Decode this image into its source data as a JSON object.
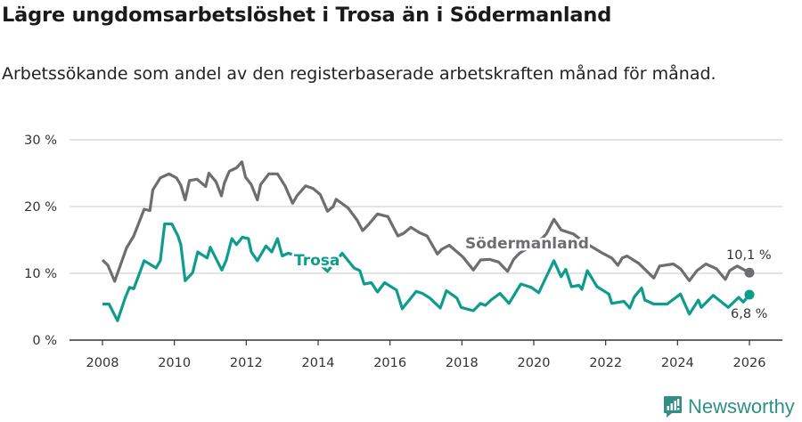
{
  "header": {
    "title": "Lägre ungdomsarbetslöshet i Trosa än i Södermanland",
    "subtitle": "Arbetssökande som andel av den registerbaserade arbetskraften månad för månad."
  },
  "brand": {
    "name": "Newsworthy",
    "color": "#2f8f87"
  },
  "chart_data": {
    "type": "line",
    "title": "Lägre ungdomsarbetslöshet i Trosa än i Södermanland",
    "xlabel": "",
    "ylabel": "",
    "xlim": [
      2008,
      2026
    ],
    "ylim": [
      0,
      30
    ],
    "x_ticks": [
      2008,
      2010,
      2012,
      2014,
      2016,
      2018,
      2020,
      2022,
      2024,
      2026
    ],
    "x_tick_labels": [
      "2008",
      "2010",
      "2012",
      "2014",
      "2016",
      "2018",
      "2020",
      "2022",
      "2024",
      "2026"
    ],
    "y_ticks": [
      0,
      10,
      20,
      30
    ],
    "y_tick_labels": [
      "0 %",
      "10 %",
      "20 %",
      "30 %"
    ],
    "grid": true,
    "series": [
      {
        "name": "Södermanland",
        "color": "#6e6d72",
        "end_label": "10,1 %",
        "points": [
          [
            2008.0,
            12.0
          ],
          [
            2008.15,
            11.2
          ],
          [
            2008.34,
            8.8
          ],
          [
            2008.67,
            13.8
          ],
          [
            2008.87,
            15.6
          ],
          [
            2009.16,
            19.6
          ],
          [
            2009.32,
            19.4
          ],
          [
            2009.4,
            22.5
          ],
          [
            2009.61,
            24.3
          ],
          [
            2009.85,
            24.9
          ],
          [
            2010.06,
            24.3
          ],
          [
            2010.18,
            23.2
          ],
          [
            2010.3,
            21.0
          ],
          [
            2010.42,
            23.9
          ],
          [
            2010.63,
            24.1
          ],
          [
            2010.87,
            23.0
          ],
          [
            2010.96,
            25.0
          ],
          [
            2011.16,
            23.7
          ],
          [
            2011.31,
            21.6
          ],
          [
            2011.39,
            23.5
          ],
          [
            2011.53,
            25.3
          ],
          [
            2011.73,
            25.8
          ],
          [
            2011.88,
            26.7
          ],
          [
            2011.98,
            24.4
          ],
          [
            2012.14,
            23.3
          ],
          [
            2012.31,
            21.0
          ],
          [
            2012.4,
            23.3
          ],
          [
            2012.63,
            24.9
          ],
          [
            2012.87,
            24.9
          ],
          [
            2013.08,
            23.1
          ],
          [
            2013.29,
            20.5
          ],
          [
            2013.41,
            21.6
          ],
          [
            2013.65,
            23.1
          ],
          [
            2013.86,
            22.7
          ],
          [
            2014.06,
            21.8
          ],
          [
            2014.26,
            19.3
          ],
          [
            2014.42,
            20.0
          ],
          [
            2014.5,
            21.1
          ],
          [
            2014.83,
            19.8
          ],
          [
            2015.08,
            18.0
          ],
          [
            2015.24,
            16.4
          ],
          [
            2015.4,
            17.3
          ],
          [
            2015.65,
            18.9
          ],
          [
            2015.94,
            18.5
          ],
          [
            2016.22,
            15.6
          ],
          [
            2016.38,
            16.0
          ],
          [
            2016.58,
            16.9
          ],
          [
            2016.82,
            16.1
          ],
          [
            2017.03,
            15.6
          ],
          [
            2017.32,
            12.9
          ],
          [
            2017.44,
            13.6
          ],
          [
            2017.65,
            14.2
          ],
          [
            2018.02,
            12.5
          ],
          [
            2018.32,
            10.5
          ],
          [
            2018.52,
            12.0
          ],
          [
            2018.77,
            12.1
          ],
          [
            2019.02,
            11.7
          ],
          [
            2019.27,
            10.3
          ],
          [
            2019.44,
            12.1
          ],
          [
            2019.6,
            13.0
          ],
          [
            2019.9,
            14.0
          ],
          [
            2020.15,
            14.8
          ],
          [
            2020.35,
            15.9
          ],
          [
            2020.56,
            18.1
          ],
          [
            2020.76,
            16.5
          ],
          [
            2021.1,
            15.9
          ],
          [
            2021.45,
            14.5
          ],
          [
            2021.92,
            13.0
          ],
          [
            2022.17,
            12.3
          ],
          [
            2022.34,
            11.2
          ],
          [
            2022.46,
            12.3
          ],
          [
            2022.59,
            12.6
          ],
          [
            2022.92,
            11.5
          ],
          [
            2023.34,
            9.3
          ],
          [
            2023.5,
            11.1
          ],
          [
            2023.88,
            11.4
          ],
          [
            2024.08,
            10.7
          ],
          [
            2024.33,
            8.9
          ],
          [
            2024.54,
            10.4
          ],
          [
            2024.79,
            11.4
          ],
          [
            2025.08,
            10.7
          ],
          [
            2025.33,
            9.1
          ],
          [
            2025.45,
            10.4
          ],
          [
            2025.66,
            11.1
          ],
          [
            2026.0,
            10.1
          ]
        ]
      },
      {
        "name": "Trosa",
        "color": "#0e9c8d",
        "end_label": "6,8 %",
        "points": [
          [
            2008.0,
            5.4
          ],
          [
            2008.18,
            5.4
          ],
          [
            2008.42,
            2.9
          ],
          [
            2008.63,
            6.3
          ],
          [
            2008.75,
            7.9
          ],
          [
            2008.87,
            7.7
          ],
          [
            2009.16,
            11.9
          ],
          [
            2009.49,
            10.8
          ],
          [
            2009.61,
            11.9
          ],
          [
            2009.73,
            17.4
          ],
          [
            2009.93,
            17.4
          ],
          [
            2010.1,
            15.6
          ],
          [
            2010.18,
            14.3
          ],
          [
            2010.3,
            8.9
          ],
          [
            2010.51,
            10.1
          ],
          [
            2010.65,
            13.2
          ],
          [
            2010.91,
            12.3
          ],
          [
            2011.0,
            13.9
          ],
          [
            2011.32,
            10.5
          ],
          [
            2011.44,
            11.9
          ],
          [
            2011.6,
            15.2
          ],
          [
            2011.73,
            14.3
          ],
          [
            2011.89,
            15.4
          ],
          [
            2012.06,
            15.2
          ],
          [
            2012.14,
            13.2
          ],
          [
            2012.31,
            11.9
          ],
          [
            2012.55,
            14.1
          ],
          [
            2012.71,
            13.2
          ],
          [
            2012.87,
            15.2
          ],
          [
            2013.0,
            12.6
          ],
          [
            2013.16,
            13.0
          ],
          [
            2013.5,
            12.6
          ],
          [
            2013.9,
            12.2
          ],
          [
            2014.26,
            10.3
          ],
          [
            2014.67,
            13.0
          ],
          [
            2015.0,
            10.8
          ],
          [
            2015.16,
            10.4
          ],
          [
            2015.28,
            8.4
          ],
          [
            2015.48,
            8.6
          ],
          [
            2015.65,
            7.2
          ],
          [
            2015.85,
            8.6
          ],
          [
            2016.18,
            7.5
          ],
          [
            2016.34,
            4.7
          ],
          [
            2016.73,
            7.3
          ],
          [
            2016.9,
            7.0
          ],
          [
            2017.11,
            6.3
          ],
          [
            2017.4,
            4.8
          ],
          [
            2017.57,
            7.4
          ],
          [
            2017.86,
            6.3
          ],
          [
            2017.98,
            4.9
          ],
          [
            2018.32,
            4.4
          ],
          [
            2018.52,
            5.5
          ],
          [
            2018.65,
            5.2
          ],
          [
            2018.81,
            6.0
          ],
          [
            2019.06,
            7.0
          ],
          [
            2019.31,
            5.5
          ],
          [
            2019.64,
            8.4
          ],
          [
            2019.93,
            7.9
          ],
          [
            2020.14,
            7.1
          ],
          [
            2020.27,
            8.6
          ],
          [
            2020.56,
            11.9
          ],
          [
            2020.76,
            9.5
          ],
          [
            2020.89,
            10.6
          ],
          [
            2021.05,
            8.0
          ],
          [
            2021.26,
            8.2
          ],
          [
            2021.34,
            7.6
          ],
          [
            2021.49,
            10.4
          ],
          [
            2021.76,
            8.0
          ],
          [
            2022.09,
            6.9
          ],
          [
            2022.17,
            5.5
          ],
          [
            2022.51,
            5.8
          ],
          [
            2022.67,
            4.8
          ],
          [
            2022.8,
            6.5
          ],
          [
            2023.0,
            7.8
          ],
          [
            2023.09,
            6.0
          ],
          [
            2023.34,
            5.4
          ],
          [
            2023.71,
            5.4
          ],
          [
            2024.08,
            6.9
          ],
          [
            2024.33,
            3.9
          ],
          [
            2024.58,
            6.0
          ],
          [
            2024.66,
            4.9
          ],
          [
            2024.99,
            6.7
          ],
          [
            2025.41,
            4.9
          ],
          [
            2025.7,
            6.4
          ],
          [
            2025.83,
            5.7
          ],
          [
            2026.0,
            6.8
          ]
        ]
      }
    ]
  }
}
